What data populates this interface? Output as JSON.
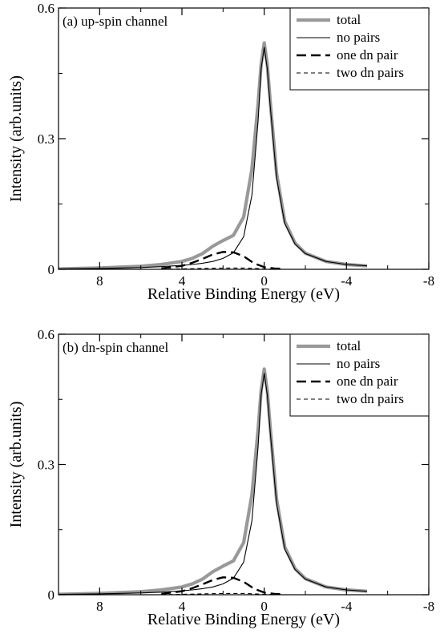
{
  "chart_data": [
    {
      "type": "line",
      "annotation": "(a) up-spin channel",
      "xlabel": "Relative Binding Energy (eV)",
      "ylabel": "Intensity (arb.units)",
      "xlim": [
        10,
        -8
      ],
      "ylim": [
        0,
        0.6
      ],
      "x_ticks": [
        8,
        4,
        0,
        -4,
        -8
      ],
      "x_tick_labels": [
        "8",
        "4",
        "0",
        "-4",
        "-8"
      ],
      "y_ticks": [
        0,
        0.3,
        0.6
      ],
      "y_tick_labels": [
        "0",
        "0.3",
        "0.6"
      ],
      "grid": false,
      "legend_position": "top-right",
      "series": [
        {
          "name": "total",
          "color": "#999999",
          "style": "solid-thick",
          "x": [
            10,
            8,
            6,
            5,
            4,
            3.5,
            3,
            2.5,
            2,
            1.5,
            1.0,
            0.6,
            0.3,
            0.15,
            0,
            -0.15,
            -0.3,
            -0.6,
            -1,
            -1.5,
            -2,
            -3,
            -4,
            -5
          ],
          "y": [
            0.001,
            0.003,
            0.007,
            0.011,
            0.018,
            0.025,
            0.036,
            0.053,
            0.066,
            0.078,
            0.12,
            0.23,
            0.38,
            0.47,
            0.52,
            0.47,
            0.38,
            0.22,
            0.11,
            0.06,
            0.037,
            0.018,
            0.011,
            0.008
          ]
        },
        {
          "name": "no pairs",
          "color": "#000000",
          "style": "solid-thin",
          "x": [
            10,
            8,
            6,
            5,
            4,
            3.5,
            3,
            2.5,
            2,
            1.5,
            1.0,
            0.6,
            0.3,
            0.15,
            0,
            -0.15,
            -0.3,
            -0.6,
            -1,
            -1.5,
            -2,
            -3,
            -4,
            -5
          ],
          "y": [
            0.001,
            0.002,
            0.004,
            0.006,
            0.009,
            0.011,
            0.014,
            0.018,
            0.025,
            0.038,
            0.075,
            0.17,
            0.34,
            0.46,
            0.51,
            0.46,
            0.37,
            0.21,
            0.105,
            0.058,
            0.036,
            0.018,
            0.011,
            0.008
          ]
        },
        {
          "name": "one dn pair",
          "color": "#000000",
          "style": "dash-thick",
          "x": [
            5,
            4,
            3.5,
            3,
            2.5,
            2,
            1.5,
            1,
            0.5,
            0,
            -0.5,
            -1
          ],
          "y": [
            0.002,
            0.008,
            0.015,
            0.024,
            0.034,
            0.04,
            0.039,
            0.03,
            0.014,
            0.005,
            0.002,
            0.001
          ]
        },
        {
          "name": "two dn pairs",
          "color": "#000000",
          "style": "dash-thin",
          "x": [
            5,
            4,
            3,
            2,
            1.5,
            1,
            0.5,
            0,
            -1
          ],
          "y": [
            0.0,
            0.001,
            0.002,
            0.003,
            0.003,
            0.003,
            0.002,
            0.001,
            0.0
          ]
        }
      ]
    },
    {
      "type": "line",
      "annotation": "(b) dn-spin channel",
      "xlabel": "Relative Binding Energy (eV)",
      "ylabel": "Intensity (arb.units)",
      "xlim": [
        10,
        -8
      ],
      "ylim": [
        0,
        0.6
      ],
      "x_ticks": [
        8,
        4,
        0,
        -4,
        -8
      ],
      "x_tick_labels": [
        "8",
        "4",
        "0",
        "-4",
        "-8"
      ],
      "y_ticks": [
        0,
        0.3,
        0.6
      ],
      "y_tick_labels": [
        "0",
        "0.3",
        "0.6"
      ],
      "grid": false,
      "legend_position": "top-right",
      "series": [
        {
          "name": "total",
          "color": "#999999",
          "style": "solid-thick",
          "x": [
            10,
            8,
            6,
            5,
            4,
            3.5,
            3,
            2.5,
            2,
            1.5,
            1.0,
            0.6,
            0.3,
            0.15,
            0,
            -0.15,
            -0.3,
            -0.6,
            -1,
            -1.5,
            -2,
            -3,
            -4,
            -5
          ],
          "y": [
            0.001,
            0.003,
            0.007,
            0.011,
            0.018,
            0.025,
            0.036,
            0.053,
            0.066,
            0.078,
            0.12,
            0.23,
            0.38,
            0.47,
            0.52,
            0.47,
            0.38,
            0.22,
            0.11,
            0.06,
            0.037,
            0.018,
            0.011,
            0.008
          ]
        },
        {
          "name": "no pairs",
          "color": "#000000",
          "style": "solid-thin",
          "x": [
            10,
            8,
            6,
            5,
            4,
            3.5,
            3,
            2.5,
            2,
            1.5,
            1.0,
            0.6,
            0.3,
            0.15,
            0,
            -0.15,
            -0.3,
            -0.6,
            -1,
            -1.5,
            -2,
            -3,
            -4,
            -5
          ],
          "y": [
            0.001,
            0.002,
            0.004,
            0.006,
            0.009,
            0.011,
            0.014,
            0.018,
            0.025,
            0.038,
            0.075,
            0.17,
            0.34,
            0.46,
            0.51,
            0.46,
            0.37,
            0.21,
            0.105,
            0.058,
            0.036,
            0.018,
            0.011,
            0.008
          ]
        },
        {
          "name": "one dn pair",
          "color": "#000000",
          "style": "dash-thick",
          "x": [
            5,
            4,
            3.5,
            3,
            2.5,
            2,
            1.5,
            1,
            0.5,
            0,
            -0.5,
            -1
          ],
          "y": [
            0.002,
            0.008,
            0.015,
            0.024,
            0.034,
            0.04,
            0.039,
            0.03,
            0.014,
            0.005,
            0.002,
            0.001
          ]
        },
        {
          "name": "two dn pairs",
          "color": "#000000",
          "style": "dash-thin",
          "x": [
            5,
            4,
            3,
            2,
            1.5,
            1,
            0.5,
            0,
            -1
          ],
          "y": [
            0.0,
            0.001,
            0.002,
            0.003,
            0.003,
            0.003,
            0.002,
            0.001,
            0.0
          ]
        }
      ]
    }
  ]
}
